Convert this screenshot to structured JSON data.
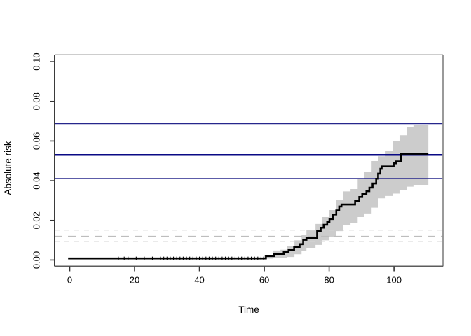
{
  "chart_data": {
    "type": "line",
    "subtype": "step-cumulative-incidence-with-confidence-band",
    "title": "",
    "xlabel": "Time",
    "ylabel": "Absolute risk",
    "xlim": [
      -4.65,
      115.11
    ],
    "ylim": [
      -0.0032,
      0.10356
    ],
    "grid": false,
    "legend_position": "none",
    "x_ticks": [
      {
        "v": 0,
        "label": "0"
      },
      {
        "v": 20,
        "label": "20"
      },
      {
        "v": 40,
        "label": "40"
      },
      {
        "v": 60,
        "label": "60"
      },
      {
        "v": 80,
        "label": "80"
      },
      {
        "v": 100,
        "label": "100"
      }
    ],
    "y_ticks": [
      {
        "v": 0.0,
        "label": "0.00"
      },
      {
        "v": 0.02,
        "label": "0.02"
      },
      {
        "v": 0.04,
        "label": "0.04"
      },
      {
        "v": 0.06,
        "label": "0.06"
      },
      {
        "v": 0.08,
        "label": "0.08"
      },
      {
        "v": 0.1,
        "label": "0.10"
      }
    ],
    "series": [
      {
        "name": "absolute-risk-step-curve",
        "color": "#000000",
        "width": 2.6,
        "t": [
          -0.5,
          60.5,
          63,
          66,
          67.5,
          69.2,
          70.9,
          72,
          73,
          76.3,
          77.4,
          78.3,
          79.4,
          80.1,
          81.1,
          82.2,
          83.1,
          83.8,
          88,
          89.3,
          90.2,
          91.5,
          92.4,
          93.4,
          94.5,
          95.1,
          95.8,
          96.2,
          99.9,
          100.6,
          102.1
        ],
        "risk": [
          0.0008,
          0.002,
          0.003,
          0.004,
          0.005,
          0.0065,
          0.008,
          0.0102,
          0.011,
          0.0145,
          0.0163,
          0.0178,
          0.0192,
          0.0207,
          0.023,
          0.025,
          0.027,
          0.028,
          0.0298,
          0.0318,
          0.0333,
          0.0347,
          0.0365,
          0.0386,
          0.041,
          0.0436,
          0.046,
          0.0472,
          0.0488,
          0.0497,
          0.0536
        ],
        "t_end": 110.6
      }
    ],
    "confidence_band": {
      "color": "#cccccc",
      "t": [
        60,
        62.8,
        65,
        67.1,
        69.3,
        71.5,
        73,
        75.8,
        77.9,
        80.1,
        82.2,
        84.4,
        86.6,
        88.8,
        90.9,
        93.1,
        95.2,
        97.4,
        99.6,
        101.7,
        103.9,
        106
      ],
      "lower": [
        0.0007,
        0.001,
        0.001,
        0.0015,
        0.0029,
        0.0045,
        0.0058,
        0.0076,
        0.0099,
        0.0117,
        0.0146,
        0.0176,
        0.0188,
        0.0217,
        0.0235,
        0.0264,
        0.0311,
        0.0323,
        0.0335,
        0.0352,
        0.037,
        0.0379
      ],
      "upper": [
        0.0025,
        0.0048,
        0.0052,
        0.007,
        0.0099,
        0.0128,
        0.0152,
        0.0182,
        0.0217,
        0.0252,
        0.0305,
        0.0346,
        0.0358,
        0.0411,
        0.0444,
        0.0499,
        0.0523,
        0.0552,
        0.0599,
        0.0629,
        0.067,
        0.0682
      ],
      "t_end": 110.6
    },
    "reference_lines": [
      {
        "name": "upper-ci-line",
        "value": 0.0688,
        "color": "#26268c",
        "width": 1.4,
        "style": "solid"
      },
      {
        "name": "estimate-line",
        "value": 0.053,
        "color": "#0a0a85",
        "width": 2.6,
        "style": "solid"
      },
      {
        "name": "lower-ci-line",
        "value": 0.0411,
        "color": "#26268c",
        "width": 1.4,
        "style": "solid"
      }
    ],
    "dashed_lines": [
      {
        "name": "dashed-upper",
        "value": 0.0151,
        "color": "#d6d6d6",
        "width": 1.4,
        "dash": "7,7"
      },
      {
        "name": "dashed-mid",
        "value": 0.0119,
        "color": "#bdbdbd",
        "width": 1.8,
        "dash": "11,8"
      },
      {
        "name": "dashed-lower",
        "value": 0.0094,
        "color": "#d6d6d6",
        "width": 1.4,
        "dash": "7,7"
      }
    ],
    "censor_times": [
      15,
      16.8,
      18,
      20.5,
      23,
      25.5,
      28,
      29,
      30,
      31,
      32,
      33,
      34,
      35,
      36,
      37,
      38,
      39,
      40,
      41,
      42,
      43,
      44,
      45,
      46,
      47,
      48,
      49,
      50,
      51,
      52,
      53,
      54,
      55,
      56,
      57,
      58,
      59,
      59.8
    ],
    "censor_level": 0.0008
  },
  "frame": {
    "top_color": "#c6c6c6",
    "right_color": "#8f8f8f",
    "bottom_color": "#5c5c5c",
    "left_color": "#3a3a3a",
    "tick_color": "#333333"
  }
}
